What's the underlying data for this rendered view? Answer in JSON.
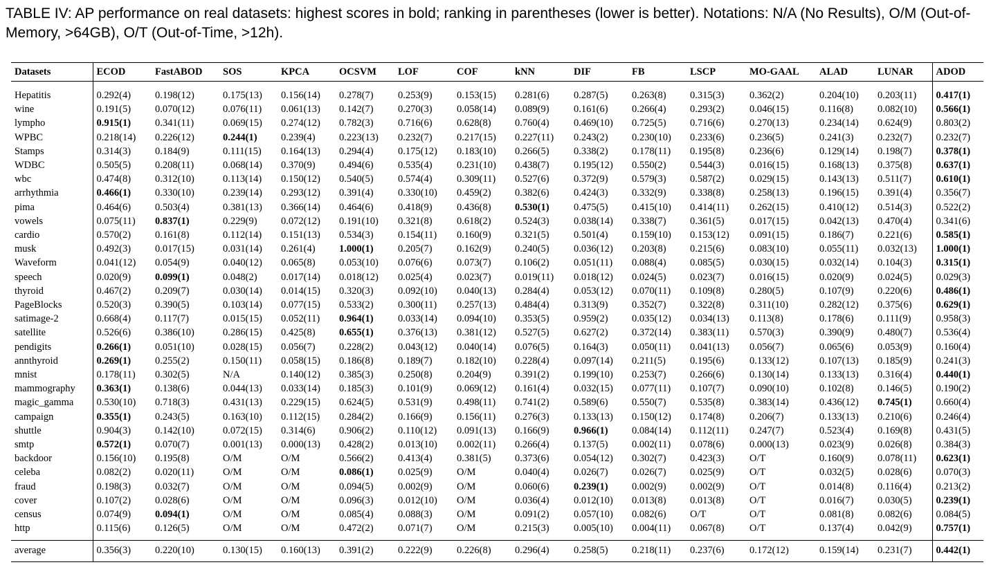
{
  "caption": "TABLE IV: AP performance on real datasets: highest scores in bold; ranking in parentheses (lower is better). Notations: N/A (No Results), O/M (Out-of-Memory, >64GB), O/T (Out-of-Time, >12h).",
  "columns": [
    "Datasets",
    "ECOD",
    "FastABOD",
    "SOS",
    "KPCA",
    "OCSVM",
    "LOF",
    "COF",
    "kNN",
    "DIF",
    "FB",
    "LSCP",
    "MO-GAAL",
    "ALAD",
    "LUNAR",
    "ADOD"
  ],
  "rows": [
    {
      "name": "Hepatitis",
      "cells": [
        "0.292(4)",
        "0.198(12)",
        "0.175(13)",
        "0.156(14)",
        "0.278(7)",
        "0.253(9)",
        "0.153(15)",
        "0.281(6)",
        "0.287(5)",
        "0.263(8)",
        "0.315(3)",
        "0.362(2)",
        "0.204(10)",
        "0.203(11)",
        "0.417(1)"
      ],
      "bold": [
        14
      ]
    },
    {
      "name": "wine",
      "cells": [
        "0.191(5)",
        "0.070(12)",
        "0.076(11)",
        "0.061(13)",
        "0.142(7)",
        "0.270(3)",
        "0.058(14)",
        "0.089(9)",
        "0.161(6)",
        "0.266(4)",
        "0.293(2)",
        "0.046(15)",
        "0.116(8)",
        "0.082(10)",
        "0.566(1)"
      ],
      "bold": [
        14
      ]
    },
    {
      "name": "lympho",
      "cells": [
        "0.915(1)",
        "0.341(11)",
        "0.069(15)",
        "0.274(12)",
        "0.782(3)",
        "0.716(6)",
        "0.628(8)",
        "0.760(4)",
        "0.469(10)",
        "0.725(5)",
        "0.716(6)",
        "0.270(13)",
        "0.234(14)",
        "0.624(9)",
        "0.803(2)"
      ],
      "bold": [
        0
      ]
    },
    {
      "name": "WPBC",
      "cells": [
        "0.218(14)",
        "0.226(12)",
        "0.244(1)",
        "0.239(4)",
        "0.223(13)",
        "0.232(7)",
        "0.217(15)",
        "0.227(11)",
        "0.243(2)",
        "0.230(10)",
        "0.233(6)",
        "0.236(5)",
        "0.241(3)",
        "0.232(7)",
        "0.232(7)"
      ],
      "bold": [
        2
      ]
    },
    {
      "name": "Stamps",
      "cells": [
        "0.314(3)",
        "0.184(9)",
        "0.111(15)",
        "0.164(13)",
        "0.294(4)",
        "0.175(12)",
        "0.183(10)",
        "0.266(5)",
        "0.338(2)",
        "0.178(11)",
        "0.195(8)",
        "0.236(6)",
        "0.129(14)",
        "0.198(7)",
        "0.378(1)"
      ],
      "bold": [
        14
      ]
    },
    {
      "name": "WDBC",
      "cells": [
        "0.505(5)",
        "0.208(11)",
        "0.068(14)",
        "0.370(9)",
        "0.494(6)",
        "0.535(4)",
        "0.231(10)",
        "0.438(7)",
        "0.195(12)",
        "0.550(2)",
        "0.544(3)",
        "0.016(15)",
        "0.168(13)",
        "0.375(8)",
        "0.637(1)"
      ],
      "bold": [
        14
      ]
    },
    {
      "name": "wbc",
      "cells": [
        "0.474(8)",
        "0.312(10)",
        "0.113(14)",
        "0.150(12)",
        "0.540(5)",
        "0.574(4)",
        "0.309(11)",
        "0.527(6)",
        "0.372(9)",
        "0.579(3)",
        "0.587(2)",
        "0.029(15)",
        "0.143(13)",
        "0.511(7)",
        "0.610(1)"
      ],
      "bold": [
        14
      ]
    },
    {
      "name": "arrhythmia",
      "cells": [
        "0.466(1)",
        "0.330(10)",
        "0.239(14)",
        "0.293(12)",
        "0.391(4)",
        "0.330(10)",
        "0.459(2)",
        "0.382(6)",
        "0.424(3)",
        "0.332(9)",
        "0.338(8)",
        "0.258(13)",
        "0.196(15)",
        "0.391(4)",
        "0.356(7)"
      ],
      "bold": [
        0
      ]
    },
    {
      "name": "pima",
      "cells": [
        "0.464(6)",
        "0.503(4)",
        "0.381(13)",
        "0.366(14)",
        "0.464(6)",
        "0.418(9)",
        "0.436(8)",
        "0.530(1)",
        "0.475(5)",
        "0.415(10)",
        "0.414(11)",
        "0.262(15)",
        "0.410(12)",
        "0.514(3)",
        "0.522(2)"
      ],
      "bold": [
        7
      ]
    },
    {
      "name": "vowels",
      "cells": [
        "0.075(11)",
        "0.837(1)",
        "0.229(9)",
        "0.072(12)",
        "0.191(10)",
        "0.321(8)",
        "0.618(2)",
        "0.524(3)",
        "0.038(14)",
        "0.338(7)",
        "0.361(5)",
        "0.017(15)",
        "0.042(13)",
        "0.470(4)",
        "0.341(6)"
      ],
      "bold": [
        1
      ]
    },
    {
      "name": "cardio",
      "cells": [
        "0.570(2)",
        "0.161(8)",
        "0.112(14)",
        "0.151(13)",
        "0.534(3)",
        "0.154(11)",
        "0.160(9)",
        "0.321(5)",
        "0.501(4)",
        "0.159(10)",
        "0.153(12)",
        "0.091(15)",
        "0.186(7)",
        "0.221(6)",
        "0.585(1)"
      ],
      "bold": [
        14
      ]
    },
    {
      "name": "musk",
      "cells": [
        "0.492(3)",
        "0.017(15)",
        "0.031(14)",
        "0.261(4)",
        "1.000(1)",
        "0.205(7)",
        "0.162(9)",
        "0.240(5)",
        "0.036(12)",
        "0.203(8)",
        "0.215(6)",
        "0.083(10)",
        "0.055(11)",
        "0.032(13)",
        "1.000(1)"
      ],
      "bold": [
        4,
        14
      ]
    },
    {
      "name": "Waveform",
      "cells": [
        "0.041(12)",
        "0.054(9)",
        "0.040(12)",
        "0.065(8)",
        "0.053(10)",
        "0.076(6)",
        "0.073(7)",
        "0.106(2)",
        "0.051(11)",
        "0.088(4)",
        "0.085(5)",
        "0.030(15)",
        "0.032(14)",
        "0.104(3)",
        "0.315(1)"
      ],
      "bold": [
        14
      ]
    },
    {
      "name": "speech",
      "cells": [
        "0.020(9)",
        "0.099(1)",
        "0.048(2)",
        "0.017(14)",
        "0.018(12)",
        "0.025(4)",
        "0.023(7)",
        "0.019(11)",
        "0.018(12)",
        "0.024(5)",
        "0.023(7)",
        "0.016(15)",
        "0.020(9)",
        "0.024(5)",
        "0.029(3)"
      ],
      "bold": [
        1
      ]
    },
    {
      "name": "thyroid",
      "cells": [
        "0.467(2)",
        "0.209(7)",
        "0.030(14)",
        "0.014(15)",
        "0.320(3)",
        "0.092(10)",
        "0.040(13)",
        "0.284(4)",
        "0.053(12)",
        "0.070(11)",
        "0.109(8)",
        "0.280(5)",
        "0.107(9)",
        "0.220(6)",
        "0.486(1)"
      ],
      "bold": [
        14
      ]
    },
    {
      "name": "PageBlocks",
      "cells": [
        "0.520(3)",
        "0.390(5)",
        "0.103(14)",
        "0.077(15)",
        "0.533(2)",
        "0.300(11)",
        "0.257(13)",
        "0.484(4)",
        "0.313(9)",
        "0.352(7)",
        "0.322(8)",
        "0.311(10)",
        "0.282(12)",
        "0.375(6)",
        "0.629(1)"
      ],
      "bold": [
        14
      ]
    },
    {
      "name": "satimage-2",
      "cells": [
        "0.668(4)",
        "0.117(7)",
        "0.015(15)",
        "0.052(11)",
        "0.964(1)",
        "0.033(14)",
        "0.094(10)",
        "0.353(5)",
        "0.959(2)",
        "0.035(12)",
        "0.034(13)",
        "0.113(8)",
        "0.178(6)",
        "0.111(9)",
        "0.958(3)"
      ],
      "bold": [
        4
      ]
    },
    {
      "name": "satellite",
      "cells": [
        "0.526(6)",
        "0.386(10)",
        "0.286(15)",
        "0.425(8)",
        "0.655(1)",
        "0.376(13)",
        "0.381(12)",
        "0.527(5)",
        "0.627(2)",
        "0.372(14)",
        "0.383(11)",
        "0.570(3)",
        "0.390(9)",
        "0.480(7)",
        "0.536(4)"
      ],
      "bold": [
        4
      ]
    },
    {
      "name": "pendigits",
      "cells": [
        "0.266(1)",
        "0.051(10)",
        "0.028(15)",
        "0.056(7)",
        "0.228(2)",
        "0.043(12)",
        "0.040(14)",
        "0.076(5)",
        "0.164(3)",
        "0.050(11)",
        "0.041(13)",
        "0.056(7)",
        "0.065(6)",
        "0.053(9)",
        "0.160(4)"
      ],
      "bold": [
        0
      ]
    },
    {
      "name": "annthyroid",
      "cells": [
        "0.269(1)",
        "0.255(2)",
        "0.150(11)",
        "0.058(15)",
        "0.186(8)",
        "0.189(7)",
        "0.182(10)",
        "0.228(4)",
        "0.097(14)",
        "0.211(5)",
        "0.195(6)",
        "0.133(12)",
        "0.107(13)",
        "0.185(9)",
        "0.241(3)"
      ],
      "bold": [
        0
      ]
    },
    {
      "name": "mnist",
      "cells": [
        "0.178(11)",
        "0.302(5)",
        "N/A",
        "0.140(12)",
        "0.385(3)",
        "0.250(8)",
        "0.204(9)",
        "0.391(2)",
        "0.199(10)",
        "0.253(7)",
        "0.266(6)",
        "0.130(14)",
        "0.133(13)",
        "0.316(4)",
        "0.440(1)"
      ],
      "bold": [
        14
      ]
    },
    {
      "name": "mammography",
      "cells": [
        "0.363(1)",
        "0.138(6)",
        "0.044(13)",
        "0.033(14)",
        "0.185(3)",
        "0.101(9)",
        "0.069(12)",
        "0.161(4)",
        "0.032(15)",
        "0.077(11)",
        "0.107(7)",
        "0.090(10)",
        "0.102(8)",
        "0.146(5)",
        "0.190(2)"
      ],
      "bold": [
        0
      ]
    },
    {
      "name": "magic_gamma",
      "cells": [
        "0.530(10)",
        "0.718(3)",
        "0.431(13)",
        "0.229(15)",
        "0.624(5)",
        "0.531(9)",
        "0.498(11)",
        "0.741(2)",
        "0.589(6)",
        "0.550(7)",
        "0.535(8)",
        "0.383(14)",
        "0.436(12)",
        "0.745(1)",
        "0.660(4)"
      ],
      "bold": [
        13
      ]
    },
    {
      "name": "campaign",
      "cells": [
        "0.355(1)",
        "0.243(5)",
        "0.163(10)",
        "0.112(15)",
        "0.284(2)",
        "0.166(9)",
        "0.156(11)",
        "0.276(3)",
        "0.133(13)",
        "0.150(12)",
        "0.174(8)",
        "0.206(7)",
        "0.133(13)",
        "0.210(6)",
        "0.246(4)"
      ],
      "bold": [
        0
      ]
    },
    {
      "name": "shuttle",
      "cells": [
        "0.904(3)",
        "0.142(10)",
        "0.072(15)",
        "0.314(6)",
        "0.906(2)",
        "0.110(12)",
        "0.091(13)",
        "0.166(9)",
        "0.966(1)",
        "0.084(14)",
        "0.112(11)",
        "0.247(7)",
        "0.523(4)",
        "0.169(8)",
        "0.431(5)"
      ],
      "bold": [
        8
      ]
    },
    {
      "name": "smtp",
      "cells": [
        "0.572(1)",
        "0.070(7)",
        "0.001(13)",
        "0.000(13)",
        "0.428(2)",
        "0.013(10)",
        "0.002(11)",
        "0.266(4)",
        "0.137(5)",
        "0.002(11)",
        "0.078(6)",
        "0.000(13)",
        "0.023(9)",
        "0.026(8)",
        "0.384(3)"
      ],
      "bold": [
        0
      ]
    },
    {
      "name": "backdoor",
      "cells": [
        "0.156(10)",
        "0.195(8)",
        "O/M",
        "O/M",
        "0.566(2)",
        "0.413(4)",
        "0.381(5)",
        "0.373(6)",
        "0.054(12)",
        "0.302(7)",
        "0.423(3)",
        "O/T",
        "0.160(9)",
        "0.078(11)",
        "0.623(1)"
      ],
      "bold": [
        14
      ]
    },
    {
      "name": "celeba",
      "cells": [
        "0.082(2)",
        "0.020(11)",
        "O/M",
        "O/M",
        "0.086(1)",
        "0.025(9)",
        "O/M",
        "0.040(4)",
        "0.026(7)",
        "0.026(7)",
        "0.025(9)",
        "O/T",
        "0.032(5)",
        "0.028(6)",
        "0.070(3)"
      ],
      "bold": [
        4
      ]
    },
    {
      "name": "fraud",
      "cells": [
        "0.198(3)",
        "0.032(7)",
        "O/M",
        "O/M",
        "0.094(5)",
        "0.002(9)",
        "O/M",
        "0.060(6)",
        "0.239(1)",
        "0.002(9)",
        "0.002(9)",
        "O/T",
        "0.014(8)",
        "0.116(4)",
        "0.213(2)"
      ],
      "bold": [
        8
      ]
    },
    {
      "name": "cover",
      "cells": [
        "0.107(2)",
        "0.028(6)",
        "O/M",
        "O/M",
        "0.096(3)",
        "0.012(10)",
        "O/M",
        "0.036(4)",
        "0.012(10)",
        "0.013(8)",
        "0.013(8)",
        "O/T",
        "0.016(7)",
        "0.030(5)",
        "0.239(1)"
      ],
      "bold": [
        14
      ]
    },
    {
      "name": "census",
      "cells": [
        "0.074(9)",
        "0.094(1)",
        "O/M",
        "O/M",
        "0.085(4)",
        "0.088(3)",
        "O/M",
        "0.091(2)",
        "0.057(10)",
        "0.082(6)",
        "O/T",
        "O/T",
        "0.081(8)",
        "0.082(6)",
        "0.084(5)"
      ],
      "bold": [
        1
      ]
    },
    {
      "name": "http",
      "cells": [
        "0.115(6)",
        "0.126(5)",
        "O/M",
        "O/M",
        "0.472(2)",
        "0.071(7)",
        "O/M",
        "0.215(3)",
        "0.005(10)",
        "0.004(11)",
        "0.067(8)",
        "O/T",
        "0.137(4)",
        "0.042(9)",
        "0.757(1)"
      ],
      "bold": [
        14
      ]
    }
  ],
  "average": {
    "name": "average",
    "cells": [
      "0.356(3)",
      "0.220(10)",
      "0.130(15)",
      "0.160(13)",
      "0.391(2)",
      "0.222(9)",
      "0.226(8)",
      "0.296(4)",
      "0.258(5)",
      "0.218(11)",
      "0.237(6)",
      "0.172(12)",
      "0.159(14)",
      "0.231(7)",
      "0.442(1)"
    ],
    "bold": [
      14
    ]
  }
}
